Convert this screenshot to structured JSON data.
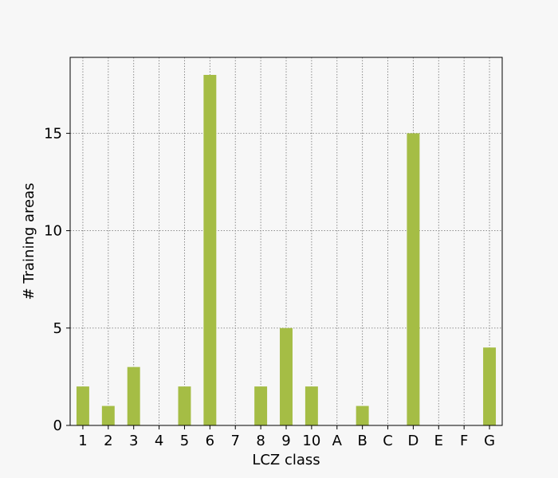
{
  "chart_data": {
    "type": "bar",
    "title": "",
    "xlabel": "LCZ class",
    "ylabel": "# Training areas",
    "categories": [
      "1",
      "2",
      "3",
      "4",
      "5",
      "6",
      "7",
      "8",
      "9",
      "10",
      "A",
      "B",
      "C",
      "D",
      "E",
      "F",
      "G"
    ],
    "values": [
      2,
      1,
      3,
      0,
      2,
      18,
      0,
      2,
      5,
      2,
      0,
      1,
      0,
      15,
      0,
      0,
      4
    ],
    "ylim": [
      0,
      18.9
    ],
    "yticks": [
      0,
      5,
      10,
      15
    ],
    "grid": true,
    "legend": "none",
    "colors": {
      "bar": "#a5bd45",
      "background": "#f7f7f7",
      "plot_background": "#f7f7f7",
      "grid": "#808080",
      "axes": "#000000"
    }
  }
}
